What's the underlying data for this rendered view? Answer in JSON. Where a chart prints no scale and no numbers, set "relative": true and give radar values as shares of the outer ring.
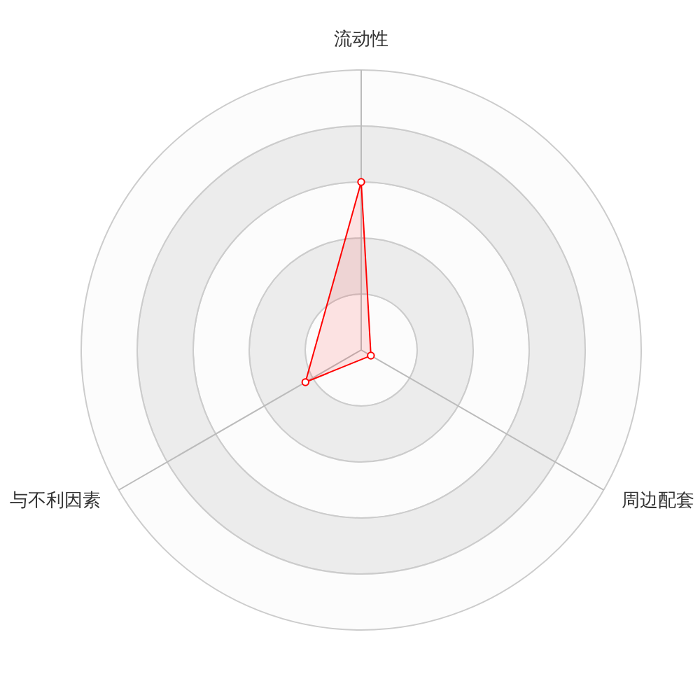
{
  "chart_data": {
    "type": "radar",
    "relative": true,
    "categories": [
      "流动性",
      "周边配套",
      "与不利因素"
    ],
    "series": [
      {
        "color": "#ff0000",
        "values": [
          0.6,
          0.04,
          0.23
        ]
      }
    ],
    "marker": "circle",
    "grid": true
  }
}
